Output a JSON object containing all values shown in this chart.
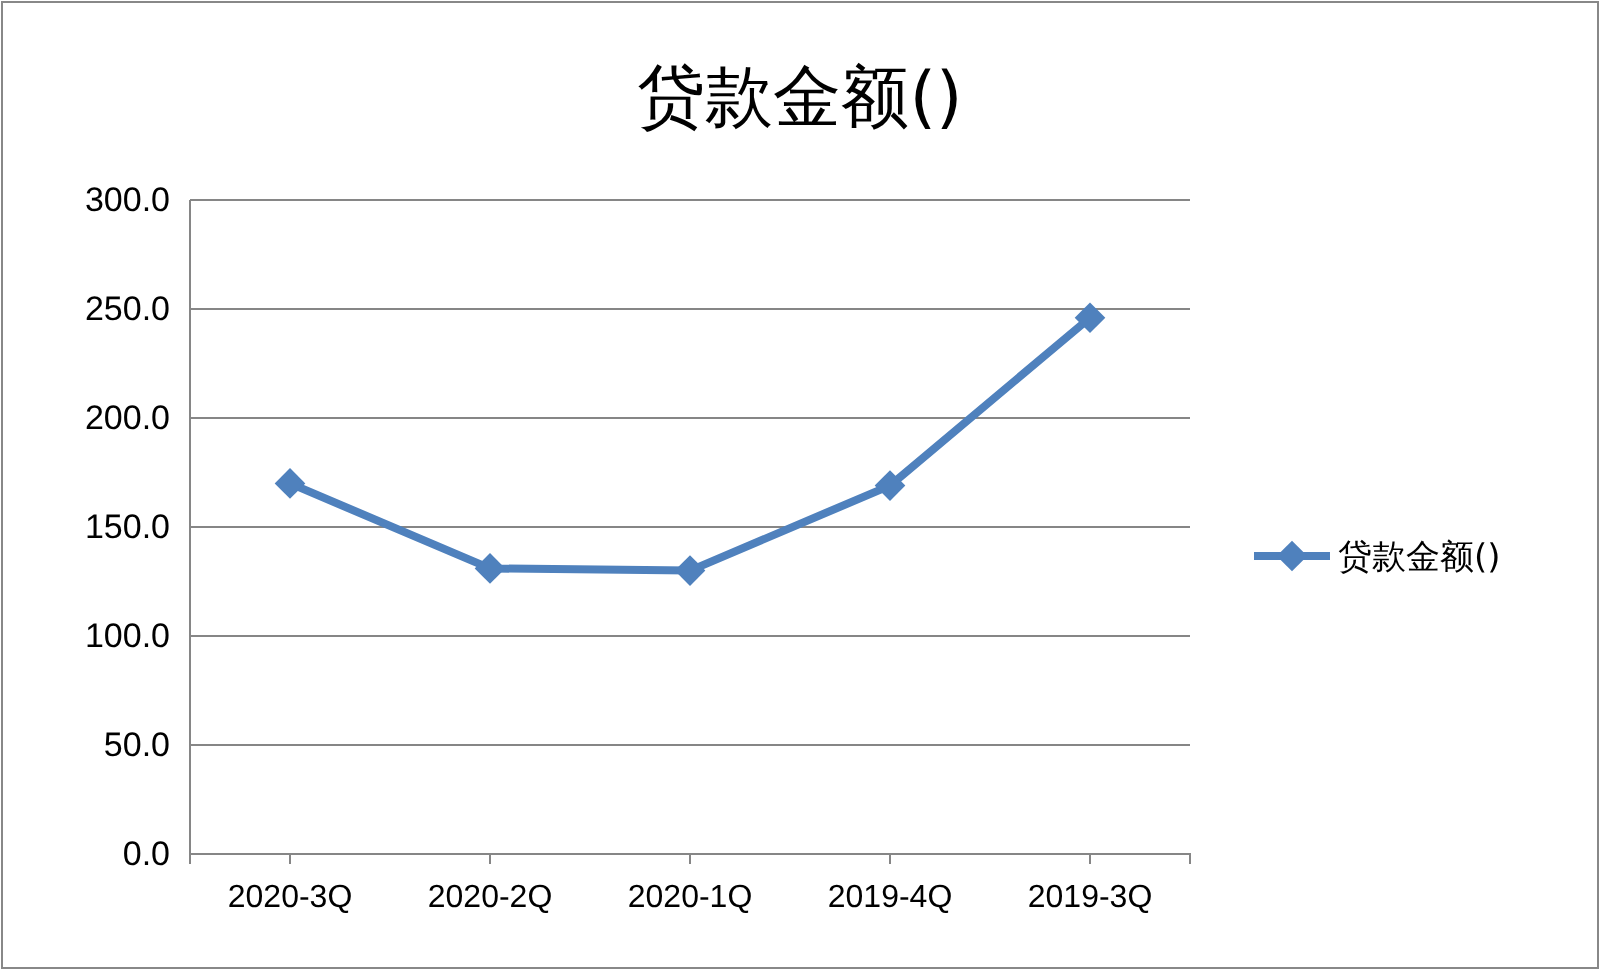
{
  "chart_data": {
    "type": "line",
    "title": "贷款金额()",
    "categories": [
      "2020-3Q",
      "2020-2Q",
      "2020-1Q",
      "2019-4Q",
      "2019-3Q"
    ],
    "series": [
      {
        "name": "贷款金额()",
        "color": "#4f81bd",
        "values": [
          170,
          131,
          130,
          169,
          246
        ]
      }
    ],
    "ylim": [
      0,
      300
    ],
    "yticks": [
      {
        "value": 0,
        "label": "0.0"
      },
      {
        "value": 50,
        "label": "50.0"
      },
      {
        "value": 100,
        "label": "100.0"
      },
      {
        "value": 150,
        "label": "150.0"
      },
      {
        "value": 200,
        "label": "200.0"
      },
      {
        "value": 250,
        "label": "250.0"
      },
      {
        "value": 300,
        "label": "300.0"
      }
    ],
    "grid": "y",
    "legend": "right",
    "marker": "diamond",
    "line_style": "solid"
  }
}
